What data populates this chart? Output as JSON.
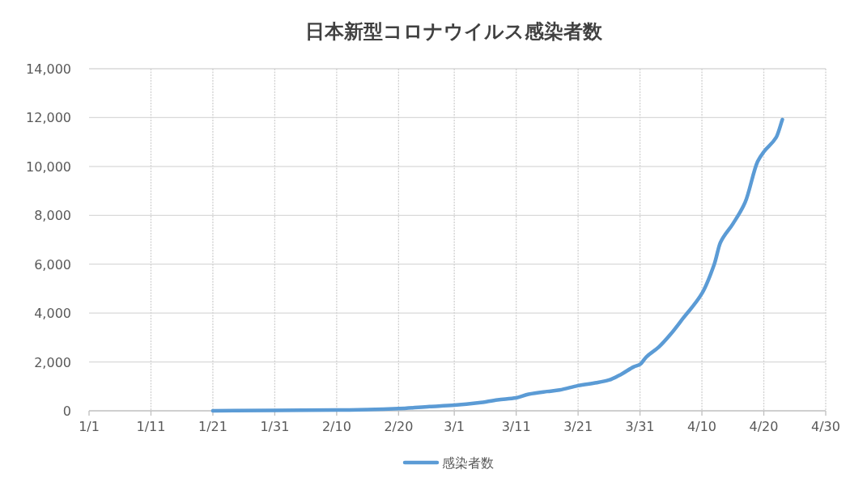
{
  "chart_data": {
    "type": "line",
    "title": "日本新型コロナウイルス感染者数",
    "x": [
      "--01-21",
      "--01-31",
      "--02-10",
      "--02-15",
      "--02-20",
      "--02-25",
      "--03-01",
      "--03-05",
      "--03-08",
      "--03-11",
      "--03-13",
      "--03-16",
      "--03-18",
      "--03-21",
      "--03-24",
      "--03-26",
      "--03-28",
      "--03-30",
      "--03-31",
      "--04-01",
      "--04-03",
      "--04-05",
      "--04-07",
      "--04-10",
      "--04-12",
      "--04-13",
      "--04-15",
      "--04-17",
      "--04-19",
      "--04-20",
      "--04-22",
      "--04-23"
    ],
    "series": [
      {
        "name": "感染者数",
        "color": "#5b9bd5",
        "values": [
          0,
          20,
          30,
          50,
          90,
          170,
          230,
          330,
          450,
          530,
          680,
          790,
          850,
          1030,
          1150,
          1260,
          1500,
          1800,
          1900,
          2200,
          2600,
          3150,
          3800,
          4800,
          6000,
          6890,
          7650,
          8540,
          10200,
          10600,
          11190,
          11920
        ]
      }
    ],
    "xlim": [
      "--01-01",
      "--04-30"
    ],
    "xticks": [
      {
        "value": "--01-01",
        "label": "1/1"
      },
      {
        "value": "--01-11",
        "label": "1/11"
      },
      {
        "value": "--01-21",
        "label": "1/21"
      },
      {
        "value": "--01-31",
        "label": "1/31"
      },
      {
        "value": "--02-10",
        "label": "2/10"
      },
      {
        "value": "--02-20",
        "label": "2/20"
      },
      {
        "value": "--03-01",
        "label": "3/1"
      },
      {
        "value": "--03-11",
        "label": "3/11"
      },
      {
        "value": "--03-21",
        "label": "3/21"
      },
      {
        "value": "--03-31",
        "label": "3/31"
      },
      {
        "value": "--04-10",
        "label": "4/10"
      },
      {
        "value": "--04-20",
        "label": "4/20"
      },
      {
        "value": "--04-30",
        "label": "4/30"
      }
    ],
    "ylim": [
      0,
      14000
    ],
    "yticks": [
      {
        "value": 0,
        "label": "0"
      },
      {
        "value": 2000,
        "label": "2,000"
      },
      {
        "value": 4000,
        "label": "4,000"
      },
      {
        "value": 6000,
        "label": "6,000"
      },
      {
        "value": 8000,
        "label": "8,000"
      },
      {
        "value": 10000,
        "label": "10,000"
      },
      {
        "value": 12000,
        "label": "12,000"
      },
      {
        "value": 14000,
        "label": "14,000"
      }
    ],
    "grid": true,
    "legend": "bottom",
    "marker": "none",
    "line_style": "solid"
  }
}
